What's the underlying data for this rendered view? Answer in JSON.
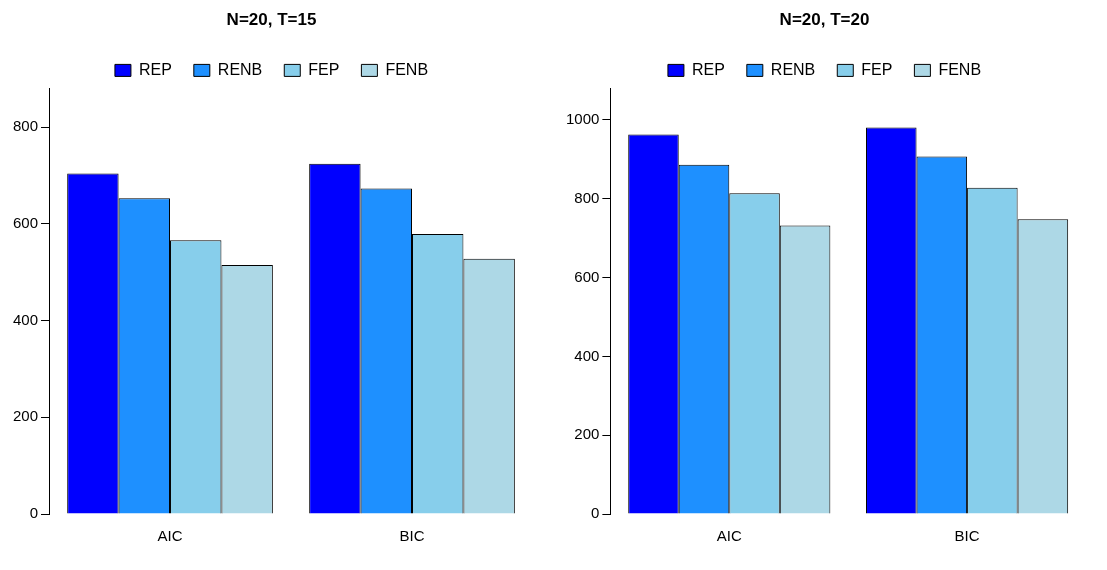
{
  "chart_data": [
    {
      "type": "bar",
      "title": "N=20, T=15",
      "categories": [
        "AIC",
        "BIC"
      ],
      "series": [
        {
          "name": "REP",
          "color": "#0000ff",
          "values": [
            704,
            724
          ]
        },
        {
          "name": "RENB",
          "color": "#1e90ff",
          "values": [
            653,
            673
          ]
        },
        {
          "name": "FEP",
          "color": "#87ceeb",
          "values": [
            566,
            579
          ]
        },
        {
          "name": "FENB",
          "color": "#add8e6",
          "values": [
            515,
            528
          ]
        }
      ],
      "ylim": [
        0,
        880
      ],
      "yticks": [
        0,
        200,
        400,
        600,
        800
      ],
      "grid": false,
      "legend": "top"
    },
    {
      "type": "bar",
      "title": "N=20, T=20",
      "categories": [
        "AIC",
        "BIC"
      ],
      "series": [
        {
          "name": "REP",
          "color": "#0000ff",
          "values": [
            963,
            981
          ]
        },
        {
          "name": "RENB",
          "color": "#1e90ff",
          "values": [
            886,
            907
          ]
        },
        {
          "name": "FEP",
          "color": "#87ceeb",
          "values": [
            814,
            828
          ]
        },
        {
          "name": "FENB",
          "color": "#add8e6",
          "values": [
            732,
            748
          ]
        }
      ],
      "ylim": [
        0,
        1080
      ],
      "yticks": [
        0,
        200,
        400,
        600,
        800,
        1000
      ],
      "grid": false,
      "legend": "top"
    }
  ]
}
